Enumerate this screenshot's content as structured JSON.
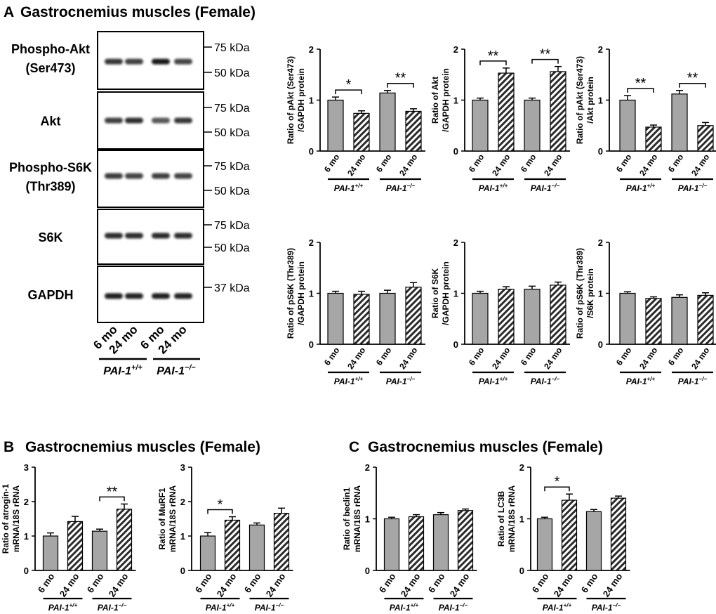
{
  "colors": {
    "bar_fill": "#a6a6a6",
    "hatch_fill": "#7a7a7a",
    "ink": "#000000"
  },
  "panels": {
    "A": {
      "letter": "A",
      "title": "Gastrocnemius muscles (Female)"
    },
    "B": {
      "letter": "B",
      "title": "Gastrocnemius muscles (Female)"
    },
    "C": {
      "letter": "C",
      "title": "Gastrocnemius muscles (Female)"
    }
  },
  "blot": {
    "rows": [
      {
        "label": [
          "Phospho-Akt",
          "(Ser473)"
        ],
        "markers": [
          "75 kDa",
          "50 kDa"
        ]
      },
      {
        "label": [
          "Akt"
        ],
        "markers": [
          "75 kDa",
          "50 kDa"
        ]
      },
      {
        "label": [
          "Phospho-S6K",
          "(Thr389)"
        ],
        "markers": [
          "75 kDa",
          "50 kDa"
        ]
      },
      {
        "label": [
          "S6K"
        ],
        "markers": [
          "75 kDa",
          "50 kDa"
        ]
      },
      {
        "label": [
          "GAPDH"
        ],
        "markers": [
          "37 kDa"
        ]
      }
    ],
    "lanes": [
      "6 mo",
      "24 mo",
      "6 mo",
      "24 mo"
    ],
    "groups": [
      {
        "base": "PAI-1",
        "sup": "+/+"
      },
      {
        "base": "PAI-1",
        "sup": "−/−"
      }
    ]
  },
  "chart_data": [
    {
      "id": "a1",
      "type": "bar",
      "ylabel": [
        "Ratio of pAkt (Ser473)",
        "/GAPDH protein"
      ],
      "ylim": [
        0,
        2
      ],
      "yticks": [
        0,
        1,
        2
      ],
      "categories": [
        "6 mo",
        "24 mo",
        "6 mo",
        "24 mo"
      ],
      "groups": [
        {
          "base": "PAI-1",
          "sup": "+/+"
        },
        {
          "base": "PAI-1",
          "sup": "−/−"
        }
      ],
      "values": [
        1.0,
        0.74,
        1.14,
        0.78
      ],
      "errors": [
        0.06,
        0.05,
        0.05,
        0.05
      ],
      "sig": [
        {
          "pair": [
            0,
            1
          ],
          "label": "*"
        },
        {
          "pair": [
            2,
            3
          ],
          "label": "**"
        }
      ]
    },
    {
      "id": "a2",
      "type": "bar",
      "ylabel": [
        "Ratio of Akt",
        "/GAPDH protein"
      ],
      "ylim": [
        0,
        2
      ],
      "yticks": [
        0,
        1,
        2
      ],
      "categories": [
        "6 mo",
        "24 mo",
        "6 mo",
        "24 mo"
      ],
      "groups": [
        {
          "base": "PAI-1",
          "sup": "+/+"
        },
        {
          "base": "PAI-1",
          "sup": "−/−"
        }
      ],
      "values": [
        1.0,
        1.53,
        1.0,
        1.56
      ],
      "errors": [
        0.04,
        0.1,
        0.04,
        0.1
      ],
      "sig": [
        {
          "pair": [
            0,
            1
          ],
          "label": "**"
        },
        {
          "pair": [
            2,
            3
          ],
          "label": "**"
        }
      ]
    },
    {
      "id": "a3",
      "type": "bar",
      "ylabel": [
        "Ratio of pAkt (Ser473)",
        "/Akt protein"
      ],
      "ylim": [
        0,
        2
      ],
      "yticks": [
        0,
        1,
        2
      ],
      "categories": [
        "6 mo",
        "24 mo",
        "6 mo",
        "24 mo"
      ],
      "groups": [
        {
          "base": "PAI-1",
          "sup": "+/+"
        },
        {
          "base": "PAI-1",
          "sup": "−/−"
        }
      ],
      "values": [
        1.0,
        0.47,
        1.12,
        0.5
      ],
      "errors": [
        0.09,
        0.04,
        0.07,
        0.06
      ],
      "sig": [
        {
          "pair": [
            0,
            1
          ],
          "label": "**"
        },
        {
          "pair": [
            2,
            3
          ],
          "label": "**"
        }
      ]
    },
    {
      "id": "a4",
      "type": "bar",
      "ylabel": [
        "Ratio of pS6K (Thr389)",
        "/GAPDH protein"
      ],
      "ylim": [
        0,
        2
      ],
      "yticks": [
        0,
        1,
        2
      ],
      "categories": [
        "6 mo",
        "24 mo",
        "6 mo",
        "24 mo"
      ],
      "groups": [
        {
          "base": "PAI-1",
          "sup": "+/+"
        },
        {
          "base": "PAI-1",
          "sup": "−/−"
        }
      ],
      "values": [
        1.0,
        0.98,
        1.0,
        1.12
      ],
      "errors": [
        0.04,
        0.06,
        0.06,
        0.09
      ],
      "sig": []
    },
    {
      "id": "a5",
      "type": "bar",
      "ylabel": [
        "Ratio of S6K",
        "/GAPDH protein"
      ],
      "ylim": [
        0,
        2
      ],
      "yticks": [
        0,
        1,
        2
      ],
      "categories": [
        "6 mo",
        "24 mo",
        "6 mo",
        "24 mo"
      ],
      "groups": [
        {
          "base": "PAI-1",
          "sup": "+/+"
        },
        {
          "base": "PAI-1",
          "sup": "−/−"
        }
      ],
      "values": [
        1.0,
        1.08,
        1.08,
        1.16
      ],
      "errors": [
        0.04,
        0.05,
        0.06,
        0.06
      ],
      "sig": []
    },
    {
      "id": "a6",
      "type": "bar",
      "ylabel": [
        "Ratio of pS6K (Thr389)",
        "/S6K protein"
      ],
      "ylim": [
        0,
        2
      ],
      "yticks": [
        0,
        1,
        2
      ],
      "categories": [
        "6 mo",
        "24 mo",
        "6 mo",
        "24 mo"
      ],
      "groups": [
        {
          "base": "PAI-1",
          "sup": "+/+"
        },
        {
          "base": "PAI-1",
          "sup": "−/−"
        }
      ],
      "values": [
        1.0,
        0.9,
        0.92,
        0.96
      ],
      "errors": [
        0.03,
        0.03,
        0.05,
        0.05
      ],
      "sig": []
    },
    {
      "id": "b1",
      "type": "bar",
      "ylabel": [
        "Ratio of atrogin-1",
        "mRNA/18S rRNA"
      ],
      "ylim": [
        0,
        3
      ],
      "yticks": [
        0,
        1,
        2,
        3
      ],
      "categories": [
        "6 mo",
        "24 mo",
        "6 mo",
        "24 mo"
      ],
      "groups": [
        {
          "base": "PAI-1",
          "sup": "+/+"
        },
        {
          "base": "PAI-1",
          "sup": "−/−"
        }
      ],
      "values": [
        1.0,
        1.42,
        1.14,
        1.78
      ],
      "errors": [
        0.09,
        0.15,
        0.06,
        0.15
      ],
      "sig": [
        {
          "pair": [
            2,
            3
          ],
          "label": "**"
        }
      ]
    },
    {
      "id": "b2",
      "type": "bar",
      "ylabel": [
        "Ratio of MuRF1",
        "mRNA/18S rRNA"
      ],
      "ylim": [
        0,
        3
      ],
      "yticks": [
        0,
        1,
        2,
        3
      ],
      "categories": [
        "6 mo",
        "24 mo",
        "6 mo",
        "24 mo"
      ],
      "groups": [
        {
          "base": "PAI-1",
          "sup": "+/+"
        },
        {
          "base": "PAI-1",
          "sup": "−/−"
        }
      ],
      "values": [
        1.0,
        1.46,
        1.32,
        1.66
      ],
      "errors": [
        0.1,
        0.1,
        0.06,
        0.15
      ],
      "sig": [
        {
          "pair": [
            0,
            1
          ],
          "label": "*"
        }
      ]
    },
    {
      "id": "c1",
      "type": "bar",
      "ylabel": [
        "Ratio of beclin1",
        "mRNA/18S rRNA"
      ],
      "ylim": [
        0,
        2
      ],
      "yticks": [
        0,
        1,
        2
      ],
      "categories": [
        "6 mo",
        "24 mo",
        "6 mo",
        "24 mo"
      ],
      "groups": [
        {
          "base": "PAI-1",
          "sup": "+/+"
        },
        {
          "base": "PAI-1",
          "sup": "−/−"
        }
      ],
      "values": [
        1.0,
        1.04,
        1.08,
        1.16
      ],
      "errors": [
        0.03,
        0.04,
        0.04,
        0.03
      ],
      "sig": []
    },
    {
      "id": "c2",
      "type": "bar",
      "ylabel": [
        "Ratio of LC3B",
        "mRNA/18S rRNA"
      ],
      "ylim": [
        0,
        2
      ],
      "yticks": [
        0,
        1,
        2
      ],
      "categories": [
        "6 mo",
        "24 mo",
        "6 mo",
        "24 mo"
      ],
      "groups": [
        {
          "base": "PAI-1",
          "sup": "+/+"
        },
        {
          "base": "PAI-1",
          "sup": "−/−"
        }
      ],
      "values": [
        1.0,
        1.36,
        1.14,
        1.4
      ],
      "errors": [
        0.03,
        0.12,
        0.04,
        0.04
      ],
      "sig": [
        {
          "pair": [
            0,
            1
          ],
          "label": "*"
        }
      ]
    }
  ]
}
